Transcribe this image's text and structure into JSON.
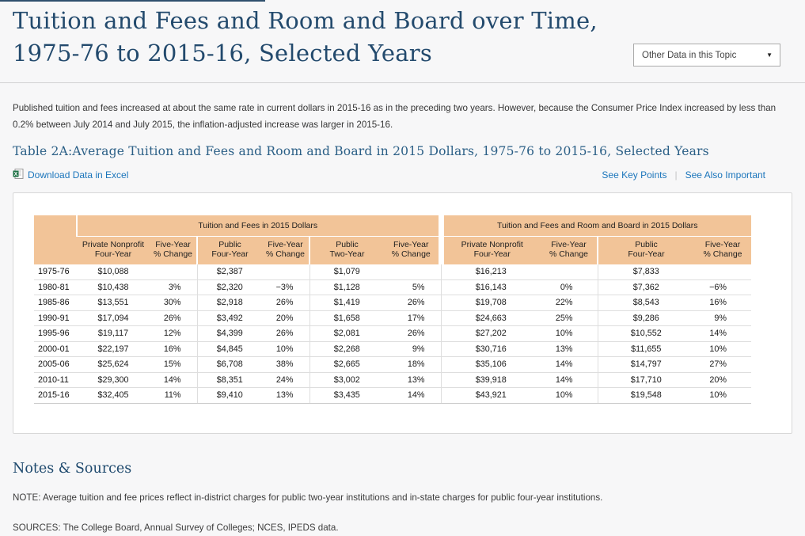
{
  "header": {
    "title_line1": "Tuition and Fees and Room and Board over Time,",
    "title_line2": "1975-76 to 2015-16, Selected Years",
    "dropdown_label": "Other Data in this Topic"
  },
  "intro": "Published tuition and fees increased at about the same rate in current dollars in 2015-16 as in the preceding two years. However, because the Consumer Price Index increased by less than 0.2% between July 2014 and July 2015, the inflation-adjusted increase was larger in 2015-16.",
  "table_title": "Table 2A:Average Tuition and Fees and Room and Board in 2015 Dollars, 1975-76 to 2015-16, Selected Years",
  "links": {
    "download": "Download Data in Excel",
    "key_points": "See Key Points",
    "separator": "|",
    "also_important": "See Also Important"
  },
  "table": {
    "groups": [
      {
        "label": "Tuition and Fees in 2015 Dollars",
        "colspan": 6
      },
      {
        "label": "Tuition and Fees and Room and Board in 2015 Dollars",
        "colspan": 4
      }
    ],
    "columns": [
      "Private Nonprofit\nFour-Year",
      "Five-Year\n% Change",
      "Public\nFour-Year",
      "Five-Year\n% Change",
      "Public\nTwo-Year",
      "Five-Year\n% Change",
      "Private Nonprofit\nFour-Year",
      "Five-Year\n% Change",
      "Public\nFour-Year",
      "Five-Year\n% Change"
    ],
    "rows": [
      {
        "year": "1975-76",
        "cells": [
          "$10,088",
          "",
          "$2,387",
          "",
          "$1,079",
          "",
          "$16,213",
          "",
          "$7,833",
          ""
        ]
      },
      {
        "year": "1980-81",
        "cells": [
          "$10,438",
          "3%",
          "$2,320",
          "−3%",
          "$1,128",
          "5%",
          "$16,143",
          "0%",
          "$7,362",
          "−6%"
        ]
      },
      {
        "year": "1985-86",
        "cells": [
          "$13,551",
          "30%",
          "$2,918",
          "26%",
          "$1,419",
          "26%",
          "$19,708",
          "22%",
          "$8,543",
          "16%"
        ]
      },
      {
        "year": "1990-91",
        "cells": [
          "$17,094",
          "26%",
          "$3,492",
          "20%",
          "$1,658",
          "17%",
          "$24,663",
          "25%",
          "$9,286",
          "9%"
        ]
      },
      {
        "year": "1995-96",
        "cells": [
          "$19,117",
          "12%",
          "$4,399",
          "26%",
          "$2,081",
          "26%",
          "$27,202",
          "10%",
          "$10,552",
          "14%"
        ]
      },
      {
        "year": "2000-01",
        "cells": [
          "$22,197",
          "16%",
          "$4,845",
          "10%",
          "$2,268",
          "9%",
          "$30,716",
          "13%",
          "$11,655",
          "10%"
        ]
      },
      {
        "year": "2005-06",
        "cells": [
          "$25,624",
          "15%",
          "$6,708",
          "38%",
          "$2,665",
          "18%",
          "$35,106",
          "14%",
          "$14,797",
          "27%"
        ]
      },
      {
        "year": "2010-11",
        "cells": [
          "$29,300",
          "14%",
          "$8,351",
          "24%",
          "$3,002",
          "13%",
          "$39,918",
          "14%",
          "$17,710",
          "20%"
        ]
      },
      {
        "year": "2015-16",
        "cells": [
          "$32,405",
          "11%",
          "$9,410",
          "13%",
          "$3,435",
          "14%",
          "$43,921",
          "10%",
          "$19,548",
          "10%"
        ]
      }
    ]
  },
  "notes": {
    "heading": "Notes & Sources",
    "note": "NOTE: Average tuition and fee prices reflect in-district charges for public two-year institutions and in-state charges for public four-year institutions.",
    "sources": "SOURCES: The College Board, Annual Survey of Colleges; NCES, IPEDS data."
  },
  "colors": {
    "title_navy": "#234a6d",
    "table_title_blue": "#2b5f86",
    "link_blue": "#1b75bb",
    "header_orange": "#f2c498",
    "page_background": "#f7f7f8"
  }
}
